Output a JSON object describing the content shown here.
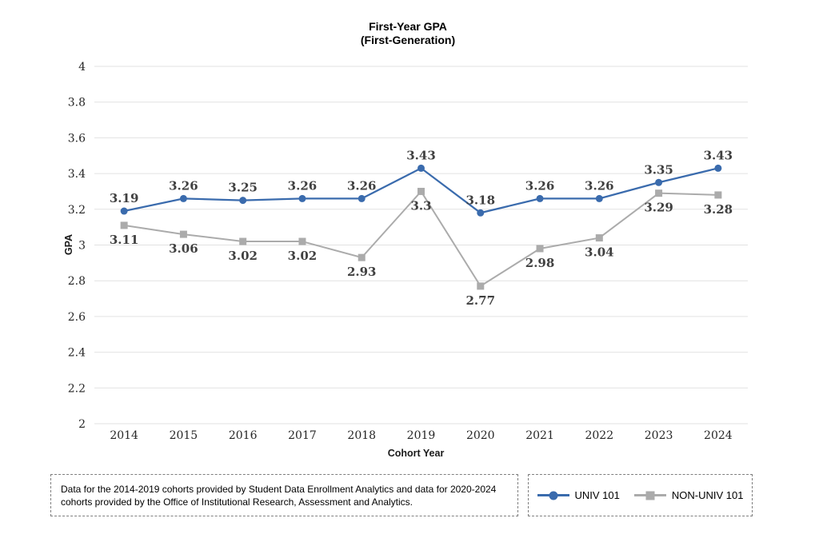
{
  "chart_data": {
    "type": "line",
    "title_lines": [
      "First-Year GPA",
      "(First-Generation)"
    ],
    "xlabel": "Cohort Year",
    "ylabel": "GPA",
    "categories": [
      "2014",
      "2015",
      "2016",
      "2017",
      "2018",
      "2019",
      "2020",
      "2021",
      "2022",
      "2023",
      "2024"
    ],
    "series": [
      {
        "name": "UNIV 101",
        "color": "#3a6bad",
        "marker": "circle",
        "label_position": "above",
        "values": [
          3.19,
          3.26,
          3.25,
          3.26,
          3.26,
          3.43,
          3.18,
          3.26,
          3.26,
          3.35,
          3.43
        ]
      },
      {
        "name": "NON-UNIV 101",
        "color": "#ababab",
        "marker": "square",
        "label_position": "below",
        "values": [
          3.11,
          3.06,
          3.02,
          3.02,
          2.93,
          3.3,
          2.77,
          2.98,
          3.04,
          3.29,
          3.28
        ]
      }
    ],
    "ylim": [
      2,
      4
    ],
    "ytick_step": 0.2,
    "grid": true,
    "gridline_color": "#e2e2e2",
    "data_label_color": "#404040",
    "legend_position": "bottom-right"
  },
  "footnote": {
    "text": "Data for the 2014-2019 cohorts provided by Student Data Enrollment Analytics and data for 2020-2024 cohorts provided by the Office of Institutional Research, Assessment and Analytics."
  }
}
